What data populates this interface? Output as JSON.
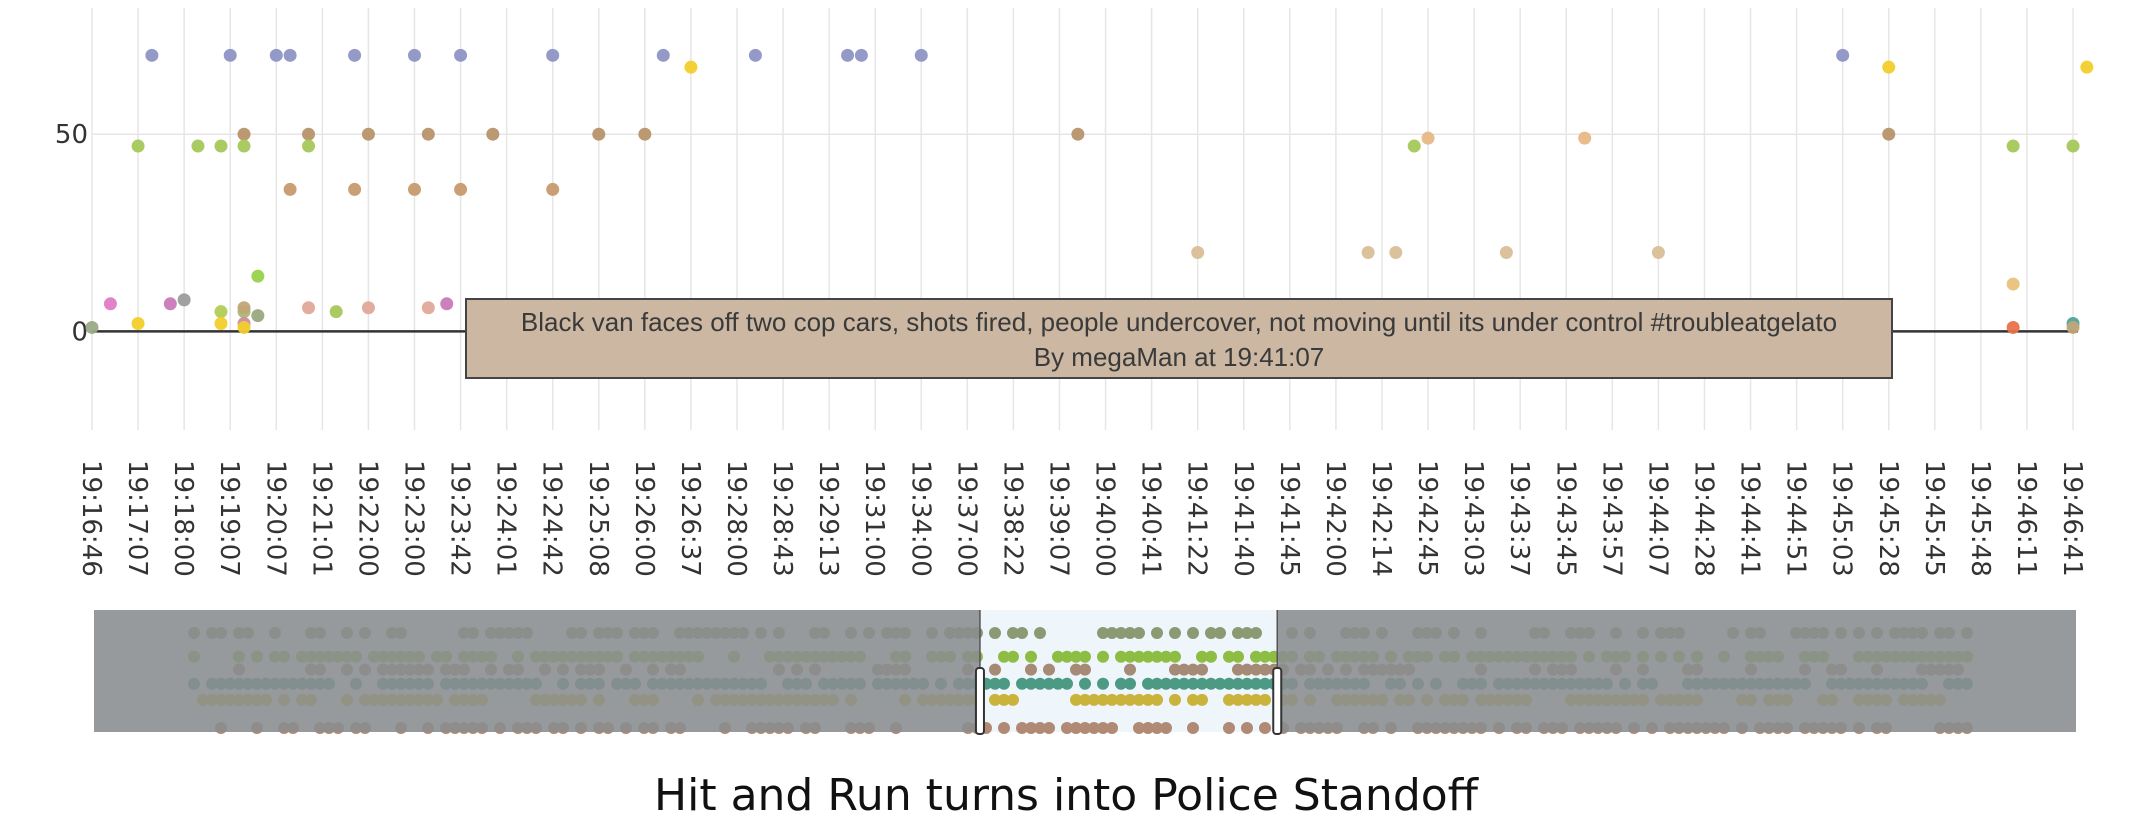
{
  "title": "Hit and Run turns into Police Standoff",
  "chart_data": {
    "type": "scatter",
    "title": "Hit and Run turns into Police Standoff",
    "ylim": [
      -25,
      82
    ],
    "yticks": [
      0,
      50
    ],
    "grid": true,
    "x_categories": [
      "19:16:46",
      "19:17:07",
      "19:18:00",
      "19:19:07",
      "19:20:07",
      "19:21:01",
      "19:22:00",
      "19:23:00",
      "19:23:42",
      "19:24:01",
      "19:24:42",
      "19:25:08",
      "19:26:00",
      "19:26:37",
      "19:28:00",
      "19:28:43",
      "19:29:13",
      "19:31:00",
      "19:34:00",
      "19:37:00",
      "19:38:22",
      "19:39:07",
      "19:40:00",
      "19:40:41",
      "19:41:22",
      "19:41:40",
      "19:41:45",
      "19:42:00",
      "19:42:14",
      "19:42:45",
      "19:43:03",
      "19:43:37",
      "19:43:45",
      "19:43:57",
      "19:44:07",
      "19:44:28",
      "19:44:41",
      "19:44:51",
      "19:45:03",
      "19:45:28",
      "19:45:45",
      "19:45:48",
      "19:46:11",
      "19:46:41"
    ],
    "points": [
      {
        "x": 0.0,
        "y": 1,
        "color": "#9aaa86"
      },
      {
        "x": 1.0,
        "y": 47,
        "color": "#a5c75a"
      },
      {
        "x": 1.0,
        "y": 2,
        "color": "#f2cf2b"
      },
      {
        "x": 1.3,
        "y": 70,
        "color": "#8e95c4"
      },
      {
        "x": 0.4,
        "y": 7,
        "color": "#df7cc6"
      },
      {
        "x": 1.7,
        "y": 7,
        "color": "#c97ab9"
      },
      {
        "x": 2.0,
        "y": 8,
        "color": "#9c9c9c"
      },
      {
        "x": 2.3,
        "y": 47,
        "color": "#a5c75a"
      },
      {
        "x": 2.8,
        "y": 47,
        "color": "#a5c75a"
      },
      {
        "x": 2.8,
        "y": 5,
        "color": "#b3cc55"
      },
      {
        "x": 2.8,
        "y": 2,
        "color": "#f2cf2b"
      },
      {
        "x": 3.0,
        "y": 70,
        "color": "#8e95c4"
      },
      {
        "x": 3.3,
        "y": 50,
        "color": "#b7946a"
      },
      {
        "x": 3.3,
        "y": 47,
        "color": "#a5c75a"
      },
      {
        "x": 3.3,
        "y": 5,
        "color": "#a9b870"
      },
      {
        "x": 3.3,
        "y": 6,
        "color": "#c2a478"
      },
      {
        "x": 3.3,
        "y": 2,
        "color": "#cf8aa4"
      },
      {
        "x": 3.3,
        "y": 1,
        "color": "#f2cf2b"
      },
      {
        "x": 3.6,
        "y": 14,
        "color": "#97d24d"
      },
      {
        "x": 3.6,
        "y": 4,
        "color": "#9aa882"
      },
      {
        "x": 4.0,
        "y": 70,
        "color": "#8e95c4"
      },
      {
        "x": 4.3,
        "y": 70,
        "color": "#8e95c4"
      },
      {
        "x": 4.3,
        "y": 36,
        "color": "#c79a6e"
      },
      {
        "x": 4.7,
        "y": 50,
        "color": "#b7946a"
      },
      {
        "x": 4.7,
        "y": 47,
        "color": "#a5c75a"
      },
      {
        "x": 4.7,
        "y": 6,
        "color": "#e0a899"
      },
      {
        "x": 5.3,
        "y": 5,
        "color": "#a5c75a"
      },
      {
        "x": 5.7,
        "y": 70,
        "color": "#8e95c4"
      },
      {
        "x": 5.7,
        "y": 36,
        "color": "#c79a6e"
      },
      {
        "x": 6.0,
        "y": 50,
        "color": "#b7946a"
      },
      {
        "x": 6.0,
        "y": 6,
        "color": "#e0a899"
      },
      {
        "x": 7.0,
        "y": 70,
        "color": "#8e95c4"
      },
      {
        "x": 7.0,
        "y": 36,
        "color": "#c79a6e"
      },
      {
        "x": 7.3,
        "y": 50,
        "color": "#b7946a"
      },
      {
        "x": 7.3,
        "y": 6,
        "color": "#e0a899"
      },
      {
        "x": 7.7,
        "y": 7,
        "color": "#c97ab9"
      },
      {
        "x": 8.0,
        "y": 70,
        "color": "#8e95c4"
      },
      {
        "x": 8.0,
        "y": 36,
        "color": "#c79a6e"
      },
      {
        "x": 8.7,
        "y": 50,
        "color": "#b7946a"
      },
      {
        "x": 10.0,
        "y": 70,
        "color": "#8e95c4"
      },
      {
        "x": 10.0,
        "y": 36,
        "color": "#c79a6e"
      },
      {
        "x": 11.0,
        "y": 50,
        "color": "#b7946a"
      },
      {
        "x": 12.0,
        "y": 50,
        "color": "#b7946a"
      },
      {
        "x": 12.4,
        "y": 70,
        "color": "#8e95c4"
      },
      {
        "x": 13.0,
        "y": 67,
        "color": "#f2cf2b"
      },
      {
        "x": 14.4,
        "y": 70,
        "color": "#8e95c4"
      },
      {
        "x": 16.4,
        "y": 70,
        "color": "#8e95c4"
      },
      {
        "x": 16.7,
        "y": 70,
        "color": "#8e95c4"
      },
      {
        "x": 18.0,
        "y": 70,
        "color": "#8e95c4"
      },
      {
        "x": 21.4,
        "y": 50,
        "color": "#b7946a"
      },
      {
        "x": 24.0,
        "y": 20,
        "color": "#d9bf98"
      },
      {
        "x": 27.7,
        "y": 20,
        "color": "#d9bf98"
      },
      {
        "x": 28.3,
        "y": 20,
        "color": "#d9bf98"
      },
      {
        "x": 28.7,
        "y": 47,
        "color": "#a5c75a"
      },
      {
        "x": 29.0,
        "y": 49,
        "color": "#e8b985"
      },
      {
        "x": 30.7,
        "y": 20,
        "color": "#d9bf98"
      },
      {
        "x": 32.4,
        "y": 49,
        "color": "#e8b985"
      },
      {
        "x": 34.0,
        "y": 20,
        "color": "#d9bf98"
      },
      {
        "x": 38.0,
        "y": 70,
        "color": "#8e95c4"
      },
      {
        "x": 39.0,
        "y": 67,
        "color": "#f2cf2b"
      },
      {
        "x": 39.0,
        "y": 50,
        "color": "#b7946a"
      },
      {
        "x": 41.7,
        "y": 47,
        "color": "#a5c75a"
      },
      {
        "x": 41.7,
        "y": 12,
        "color": "#e8c27a"
      },
      {
        "x": 41.7,
        "y": 1,
        "color": "#e8724a"
      },
      {
        "x": 43.0,
        "y": 47,
        "color": "#a5c75a"
      },
      {
        "x": 43.0,
        "y": 2,
        "color": "#4fa39a"
      },
      {
        "x": 43.0,
        "y": 1,
        "color": "#c2a478"
      },
      {
        "x": 43.3,
        "y": 67,
        "color": "#f2cf2b"
      }
    ]
  },
  "tooltip": {
    "text": "Black van faces off two cop cars, shots fired, people undercover, not moving until its under control #troubleatgelato",
    "byline": "By  megaMan  at  19:41:07",
    "background": "#cbb7a2"
  },
  "rangeslider": {
    "selection": [
      0.447,
      0.597
    ],
    "mask_color": "#8a8d90",
    "window_color": "#eef5fb",
    "lanes": [
      {
        "color": "#8a9a72",
        "y": 0.12,
        "density": 0.55
      },
      {
        "color": "#8dbd42",
        "y": 0.34,
        "density": 0.75
      },
      {
        "color": "#a58a76",
        "y": 0.46,
        "density": 0.45
      },
      {
        "color": "#4c9a84",
        "y": 0.59,
        "density": 0.8
      },
      {
        "color": "#c9b33a",
        "y": 0.74,
        "density": 0.65
      },
      {
        "color": "#b08a74",
        "y": 1.0,
        "density": 0.6
      }
    ]
  }
}
